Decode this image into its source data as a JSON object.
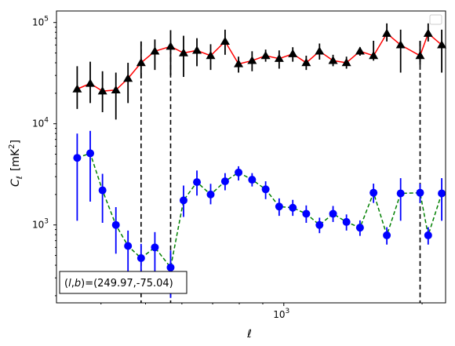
{
  "chart_data": {
    "type": "line",
    "xlabel": "ℓ",
    "ylabel": "C",
    "ylabel_sub": "ℓ",
    "ylabel_unit": "[mK",
    "ylabel_unit_sup": "2",
    "ylabel_unit_close": "]",
    "x_scale": "log",
    "y_scale": "log",
    "xlim": [
      320,
      2250
    ],
    "ylim": [
      170,
      130000
    ],
    "x_tick_labels": [
      {
        "base": "10",
        "exp": "3",
        "value": 1000
      }
    ],
    "y_tick_labels": [
      {
        "base": "10",
        "exp": "3",
        "value": 1000
      },
      {
        "base": "10",
        "exp": "4",
        "value": 10000
      },
      {
        "base": "10",
        "exp": "5",
        "value": 100000
      }
    ],
    "vlines": [
      489,
      567,
      1980
    ],
    "annotation": "(l, b)=(249.97,-75.04)",
    "annotation_parts": {
      "open": "(",
      "l": "l",
      "comma": ",",
      "b": "b",
      "close": ")",
      "value": "=(249.97,-75.04)"
    },
    "legend": "top-right",
    "legend_entries": [],
    "grid": false,
    "series": [
      {
        "marker": "triangle",
        "line_color": "#ff0000",
        "marker_color": "#000000",
        "linestyle": "solid",
        "x": [
          355,
          379,
          403,
          431,
          458,
          489,
          524,
          567,
          605,
          647,
          693,
          745,
          797,
          853,
          913,
          977,
          1046,
          1119,
          1196,
          1280,
          1369,
          1465,
          1568,
          1676,
          1796,
          1980,
          2062,
          2207
        ],
        "y": [
          22000,
          25000,
          21000,
          21500,
          28000,
          40000,
          52000,
          58000,
          50000,
          53000,
          47000,
          65000,
          39000,
          42000,
          47000,
          44000,
          49000,
          40000,
          52000,
          42000,
          40000,
          52000,
          47000,
          78000,
          60000,
          47000,
          78000,
          60000
        ],
        "err_low": [
          14000,
          16000,
          13000,
          11000,
          16000,
          28000,
          34000,
          30000,
          29000,
          37000,
          34000,
          48000,
          32000,
          33000,
          41000,
          35000,
          41000,
          34000,
          43000,
          37000,
          35000,
          47000,
          42000,
          65000,
          32000,
          38000,
          65000,
          32000
        ],
        "err_high": [
          37000,
          41000,
          33000,
          32000,
          40000,
          65000,
          68000,
          84000,
          74000,
          70000,
          61000,
          85000,
          46000,
          52000,
          54000,
          53000,
          57000,
          47000,
          62000,
          48000,
          46000,
          57000,
          66000,
          98000,
          85000,
          66000,
          98000,
          85000
        ]
      },
      {
        "marker": "circle",
        "line_color": "#008000",
        "marker_color": "#0000ff",
        "linestyle": "dashed",
        "x": [
          355,
          379,
          403,
          431,
          458,
          489,
          524,
          567,
          605,
          647,
          693,
          745,
          797,
          853,
          913,
          977,
          1046,
          1119,
          1196,
          1280,
          1369,
          1465,
          1568,
          1676,
          1796,
          1980,
          2062,
          2207
        ],
        "y": [
          4600,
          5100,
          2200,
          1000,
          620,
          470,
          600,
          380,
          1750,
          2650,
          2000,
          2700,
          3300,
          2800,
          2250,
          1520,
          1480,
          1290,
          1000,
          1290,
          1070,
          940,
          2080,
          790,
          2050,
          2080,
          790,
          2050
        ],
        "err_low": [
          1100,
          1700,
          1050,
          520,
          340,
          290,
          340,
          190,
          1200,
          1950,
          1600,
          2200,
          2750,
          2400,
          1800,
          1230,
          1230,
          1050,
          830,
          1070,
          880,
          780,
          1650,
          640,
          1100,
          1650,
          640,
          1100
        ],
        "err_high": [
          8000,
          8500,
          3200,
          1500,
          880,
          650,
          850,
          560,
          2450,
          3450,
          2550,
          3250,
          3800,
          3250,
          2700,
          1830,
          1770,
          1560,
          1180,
          1540,
          1270,
          1110,
          2560,
          950,
          2900,
          2560,
          950,
          2900
        ]
      }
    ]
  }
}
